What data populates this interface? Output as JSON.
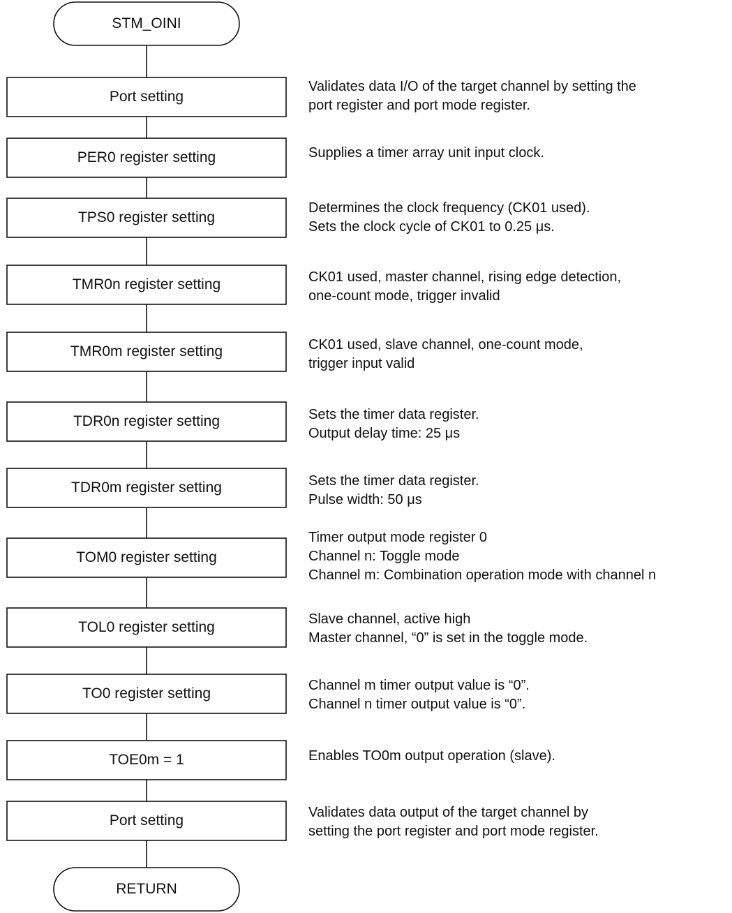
{
  "start_label": "STM_OINI",
  "end_label": "RETURN",
  "steps": [
    {
      "label": "Port setting",
      "notes": [
        "Validates data I/O of the target channel by setting the",
        "port register and port mode register."
      ]
    },
    {
      "label": "PER0 register setting",
      "notes": [
        "Supplies a timer array unit input clock."
      ]
    },
    {
      "label": "TPS0 register setting",
      "notes": [
        "Determines the clock frequency (CK01 used).",
        "Sets the clock cycle of CK01 to 0.25 μs."
      ]
    },
    {
      "label": "TMR0n register setting",
      "notes": [
        "CK01 used, master channel, rising edge detection,",
        "one-count mode, trigger invalid"
      ]
    },
    {
      "label": "TMR0m register setting",
      "notes": [
        "CK01 used, slave channel, one-count mode,",
        "trigger input valid"
      ]
    },
    {
      "label": "TDR0n register setting",
      "notes": [
        "Sets the timer data register.",
        "Output delay time: 25 μs"
      ]
    },
    {
      "label": "TDR0m register setting",
      "notes": [
        "Sets the timer data register.",
        "Pulse width: 50 μs"
      ]
    },
    {
      "label": "TOM0 register setting",
      "notes": [
        "Timer output mode register 0",
        "Channel n: Toggle mode",
        "Channel m: Combination operation mode with channel n"
      ]
    },
    {
      "label": "TOL0 register setting",
      "notes": [
        "Slave channel, active high",
        "Master channel, “0” is set in the toggle mode."
      ]
    },
    {
      "label": "TO0 register setting",
      "notes": [
        "Channel m timer output value is “0”.",
        "Channel n timer output value is “0”."
      ]
    },
    {
      "label": "TOE0m = 1",
      "notes": [
        "Enables TO0m output operation (slave)."
      ]
    },
    {
      "label": "Port setting",
      "notes": [
        "Validates data output of the target channel by",
        "setting the port register and port mode register."
      ]
    }
  ]
}
